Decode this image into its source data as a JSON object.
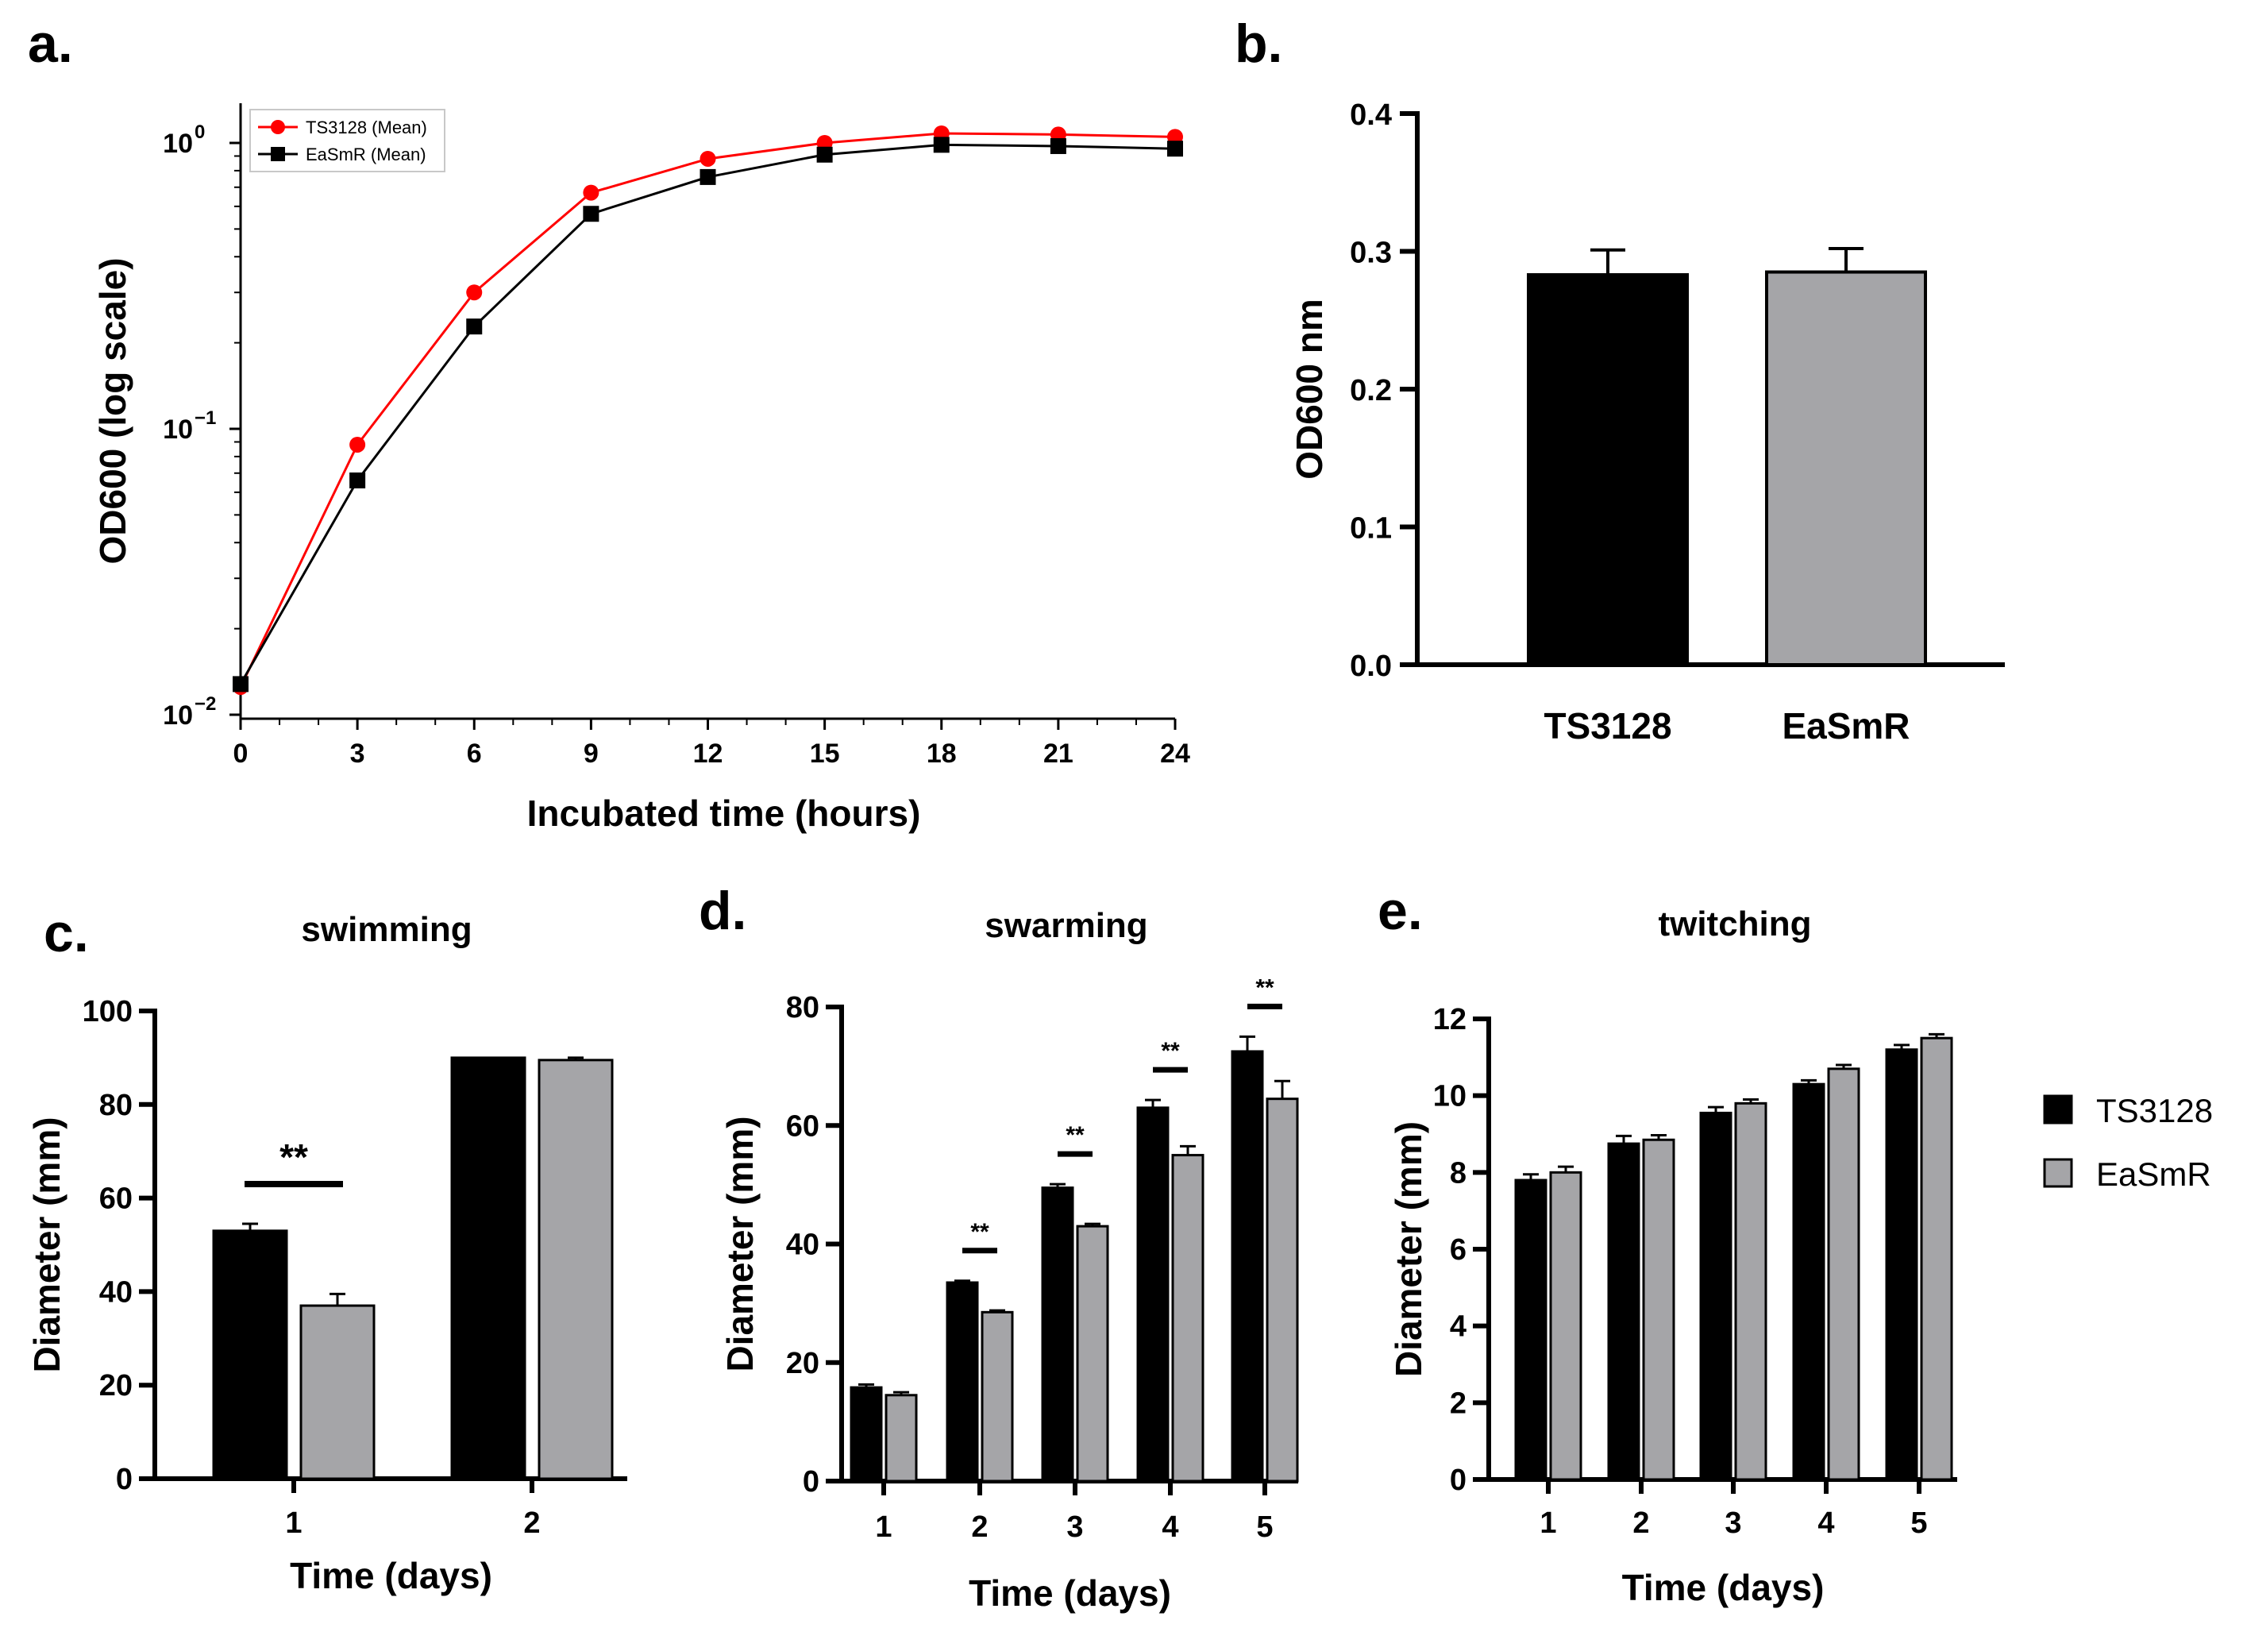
{
  "figure": {
    "series_names": [
      "TS3128",
      "EaSmR"
    ],
    "series_colors": {
      "TS3128": "#000000",
      "EaSmR": "#a5a5a8"
    }
  },
  "chart_data": [
    {
      "panel": "a.",
      "type": "line",
      "title": "",
      "xlabel": "Incubated time (hours)",
      "ylabel": "OD600 (log scale)",
      "yscale": "log",
      "x": [
        0,
        3,
        6,
        9,
        12,
        15,
        18,
        21,
        24
      ],
      "xlim": [
        0,
        24
      ],
      "ylim": [
        0.01,
        1.3
      ],
      "xticks": [
        "0",
        "3",
        "6",
        "9",
        "12",
        "15",
        "18",
        "21",
        "24"
      ],
      "yticks": [
        {
          "value": 1,
          "label": "10",
          "exp": "0"
        },
        {
          "value": 0.1,
          "label": "10",
          "exp": "−1"
        },
        {
          "value": 0.01,
          "label": "10",
          "exp": "−2"
        }
      ],
      "legend_position": "top-left",
      "series": [
        {
          "name": "TS3128 (Mean)",
          "color": "#ff0000",
          "marker": "circle",
          "values": [
            0.0125,
            0.088,
            0.3,
            0.67,
            0.88,
            1.0,
            1.08,
            1.07,
            1.05
          ]
        },
        {
          "name": "EaSmR (Mean)",
          "color": "#000000",
          "marker": "square",
          "values": [
            0.0128,
            0.066,
            0.228,
            0.565,
            0.76,
            0.91,
            0.985,
            0.975,
            0.955
          ]
        }
      ]
    },
    {
      "panel": "b.",
      "type": "bar",
      "title": "",
      "xlabel": "",
      "ylabel": "OD600 nm",
      "ylim": [
        0,
        0.4
      ],
      "yticks": [
        "0.0",
        "0.1",
        "0.2",
        "0.3",
        "0.4"
      ],
      "categories": [
        "TS3128",
        "EaSmR"
      ],
      "values": [
        0.283,
        0.285
      ],
      "errors": [
        0.018,
        0.017
      ]
    },
    {
      "panel": "c.",
      "type": "bar",
      "title": "swimming",
      "xlabel": "Time (days)",
      "ylabel": "Diameter (mm)",
      "ylim": [
        0,
        100
      ],
      "yticks": [
        "0",
        "20",
        "40",
        "60",
        "80",
        "100"
      ],
      "categories": [
        "1",
        "2"
      ],
      "series": [
        {
          "name": "TS3128",
          "values": [
            53,
            90
          ],
          "errors": [
            1.5,
            0
          ]
        },
        {
          "name": "EaSmR",
          "values": [
            37,
            89.5
          ],
          "errors": [
            2.5,
            0.5
          ]
        }
      ],
      "significance": [
        "**",
        ""
      ]
    },
    {
      "panel": "d.",
      "type": "bar",
      "title": "swarming",
      "xlabel": "Time (days)",
      "ylabel": "Diameter (mm)",
      "ylim": [
        0,
        80
      ],
      "yticks": [
        "0",
        "20",
        "40",
        "60",
        "80"
      ],
      "categories": [
        "1",
        "2",
        "3",
        "4",
        "5"
      ],
      "series": [
        {
          "name": "TS3128",
          "values": [
            15.8,
            33.5,
            49.5,
            63,
            72.5
          ],
          "errors": [
            0.5,
            0.3,
            0.6,
            1.3,
            2.5
          ]
        },
        {
          "name": "EaSmR",
          "values": [
            14.5,
            28.5,
            43,
            55,
            64.5
          ],
          "errors": [
            0.5,
            0.3,
            0.4,
            1.5,
            3.0
          ]
        }
      ],
      "significance": [
        "",
        "**",
        "**",
        "**",
        "**"
      ]
    },
    {
      "panel": "e.",
      "type": "bar",
      "title": "twitching",
      "xlabel": "Time (days)",
      "ylabel": "Diameter (mm)",
      "ylim": [
        0,
        12
      ],
      "yticks": [
        "0",
        "2",
        "4",
        "6",
        "8",
        "10",
        "12"
      ],
      "categories": [
        "1",
        "2",
        "3",
        "4",
        "5"
      ],
      "series": [
        {
          "name": "TS3128",
          "values": [
            7.8,
            8.75,
            9.55,
            10.3,
            11.2
          ],
          "errors": [
            0.15,
            0.2,
            0.15,
            0.1,
            0.12
          ]
        },
        {
          "name": "EaSmR",
          "values": [
            8.0,
            8.85,
            9.8,
            10.7,
            11.5
          ],
          "errors": [
            0.15,
            0.12,
            0.1,
            0.1,
            0.1
          ]
        }
      ],
      "legend_position": "right"
    }
  ]
}
